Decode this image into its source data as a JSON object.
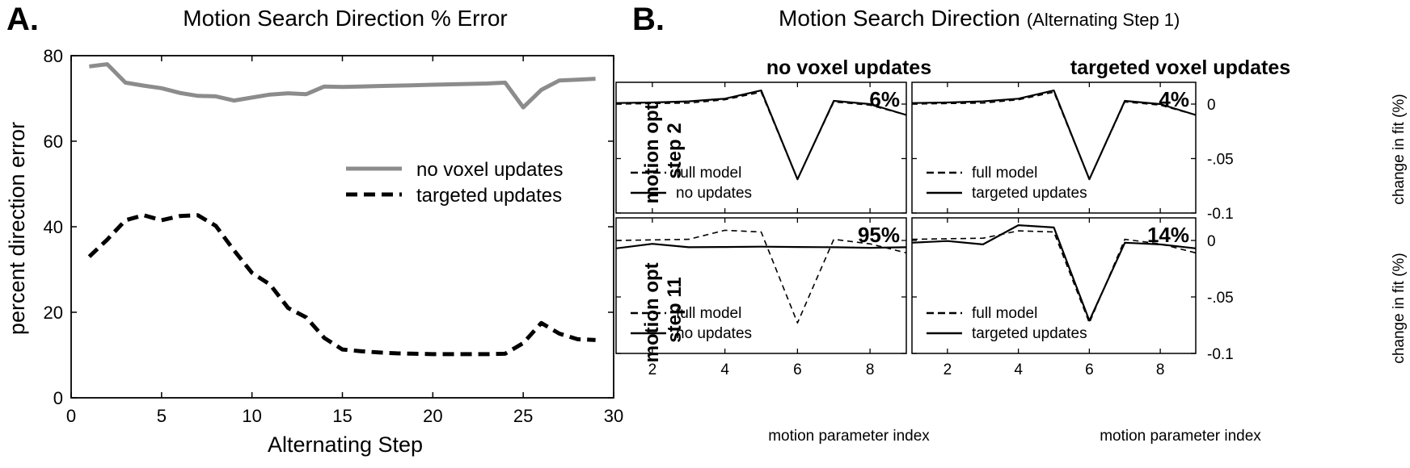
{
  "chart_data": [
    {
      "panel": "A.",
      "type": "line",
      "title": "Motion Search Direction % Error",
      "xlabel": "Alternating Step",
      "ylabel": "percent direction error",
      "xlim": [
        0,
        30
      ],
      "ylim": [
        0,
        80
      ],
      "xticks": [
        "0",
        "5",
        "10",
        "15",
        "20",
        "25",
        "30"
      ],
      "yticks": [
        "0",
        "20",
        "40",
        "60",
        "80"
      ],
      "legend_position": "center-right",
      "grid": false,
      "x": [
        1,
        2,
        3,
        4,
        5,
        6,
        7,
        8,
        9,
        10,
        11,
        12,
        13,
        14,
        15,
        16,
        17,
        18,
        19,
        20,
        21,
        22,
        23,
        24,
        25,
        26,
        27,
        28,
        29
      ],
      "series": [
        {
          "name": "no voxel updates",
          "color": "#8c8c8c",
          "dash": "solid",
          "values": [
            77.5,
            78,
            73.7,
            73,
            72.4,
            71.3,
            70.6,
            70.5,
            69.5,
            70.2,
            70.9,
            71.2,
            71,
            72.8,
            72.7,
            72.8,
            72.9,
            73,
            73.1,
            73.2,
            73.3,
            73.4,
            73.5,
            73.7,
            67.9,
            72,
            74.2,
            74.4,
            74.6
          ]
        },
        {
          "name": "targeted updates",
          "color": "#000000",
          "dash": "dashed",
          "values": [
            33,
            37,
            41.5,
            42.7,
            41.5,
            42.5,
            42.7,
            40.2,
            34.5,
            29.2,
            26.5,
            21,
            18.8,
            14,
            11.3,
            10.9,
            10.6,
            10.4,
            10.3,
            10.2,
            10.2,
            10.2,
            10.2,
            10.3,
            12.8,
            17.5,
            15,
            13.7,
            13.5
          ]
        }
      ]
    },
    {
      "panel": "B.",
      "type": "line",
      "title": "Motion Search Direction",
      "title_suffix": "(Alternating Step 1)",
      "xlabel": "motion parameter index",
      "ylabel": "change in fit (%)",
      "xlim": [
        1,
        9
      ],
      "ylim": [
        -0.1,
        0.02
      ],
      "xticks": [
        "2",
        "4",
        "6",
        "8"
      ],
      "yticks": [
        "0",
        "-.05",
        "-0.1"
      ],
      "columns": [
        "no voxel updates",
        "targeted voxel updates"
      ],
      "rows": [
        {
          "label_line1": "motion opt",
          "label_line2": "step 2",
          "right_yticks": [
            "0",
            "-.05",
            "-0.1"
          ]
        },
        {
          "label_line1": "motion opt",
          "label_line2": "step 11",
          "right_yticks": [
            "0",
            "-.05",
            "-0.1"
          ]
        }
      ],
      "x": [
        1,
        2,
        3,
        4,
        5,
        6,
        7,
        8,
        9
      ],
      "subplots": [
        {
          "row": 0,
          "col": 0,
          "annotation": "6%",
          "legend": [
            "full model",
            "no updates"
          ],
          "series": [
            {
              "name": "full model",
              "dash": "dashed",
              "width": 1.6,
              "values": [
                0.0,
                0.0005,
                0.001,
                0.004,
                0.011,
                -0.069,
                0.002,
                -0.001,
                -0.01
              ]
            },
            {
              "name": "no updates",
              "dash": "solid",
              "width": 2.2,
              "values": [
                0.001,
                0.0015,
                0.0025,
                0.005,
                0.0125,
                -0.069,
                0.003,
                0.0,
                -0.01
              ]
            }
          ]
        },
        {
          "row": 0,
          "col": 1,
          "annotation": "4%",
          "legend": [
            "full model",
            "targeted updates"
          ],
          "series": [
            {
              "name": "full model",
              "dash": "dashed",
              "width": 1.6,
              "values": [
                0.0,
                0.0005,
                0.001,
                0.004,
                0.011,
                -0.069,
                0.002,
                -0.001,
                -0.01
              ]
            },
            {
              "name": "targeted updates",
              "dash": "solid",
              "width": 2.2,
              "values": [
                0.001,
                0.0015,
                0.0025,
                0.005,
                0.0125,
                -0.069,
                0.003,
                0.0,
                -0.01
              ]
            }
          ]
        },
        {
          "row": 1,
          "col": 0,
          "annotation": "95%",
          "legend": [
            "full model",
            "no updates"
          ],
          "series": [
            {
              "name": "full model",
              "dash": "dashed",
              "width": 1.6,
              "values": [
                0.0,
                0.0005,
                0.001,
                0.009,
                0.0075,
                -0.073,
                0.001,
                -0.003,
                -0.011
              ]
            },
            {
              "name": "no updates",
              "dash": "solid",
              "width": 2.2,
              "values": [
                -0.007,
                -0.003,
                -0.006,
                -0.0058,
                -0.0055,
                -0.0058,
                -0.006,
                -0.0065,
                -0.006
              ]
            }
          ]
        },
        {
          "row": 1,
          "col": 1,
          "annotation": "14%",
          "legend": [
            "full model",
            "targeted updates"
          ],
          "series": [
            {
              "name": "full model",
              "dash": "dashed",
              "width": 1.6,
              "values": [
                0.001,
                0.0015,
                0.002,
                0.0085,
                0.0075,
                -0.073,
                0.001,
                -0.003,
                -0.011
              ]
            },
            {
              "name": "targeted updates",
              "dash": "solid",
              "width": 2.2,
              "values": [
                -0.002,
                -0.0005,
                -0.0035,
                0.0135,
                0.0115,
                -0.071,
                -0.002,
                -0.0035,
                -0.007
              ]
            }
          ]
        }
      ]
    }
  ]
}
